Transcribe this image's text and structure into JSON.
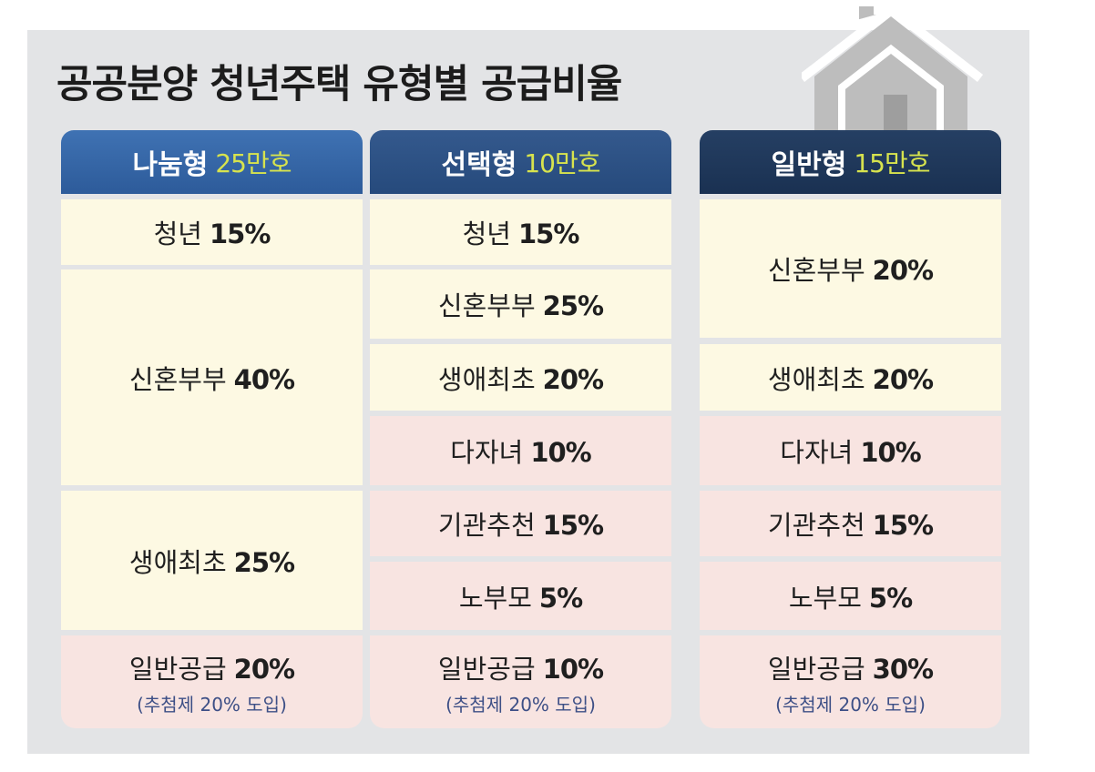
{
  "title": "공공분양 청년주택 유형별 공급비율",
  "columns": [
    {
      "name": "나눔형",
      "count": "25만호",
      "rows": [
        {
          "label": "청년",
          "pct": "15%"
        },
        {
          "label": "신혼부부",
          "pct": "40%"
        },
        {
          "label": "생애최초",
          "pct": "25%"
        },
        {
          "label": "일반공급",
          "pct": "20%",
          "note": "(추첨제 20% 도입)"
        }
      ]
    },
    {
      "name": "선택형",
      "count": "10만호",
      "rows": [
        {
          "label": "청년",
          "pct": "15%"
        },
        {
          "label": "신혼부부",
          "pct": "25%"
        },
        {
          "label": "생애최초",
          "pct": "20%"
        },
        {
          "label": "다자녀",
          "pct": "10%"
        },
        {
          "label": "기관추천",
          "pct": "15%"
        },
        {
          "label": "노부모",
          "pct": "5%"
        },
        {
          "label": "일반공급",
          "pct": "10%",
          "note": "(추첨제 20% 도입)"
        }
      ]
    },
    {
      "name": "일반형",
      "count": "15만호",
      "rows": [
        {
          "label": "신혼부부",
          "pct": "20%"
        },
        {
          "label": "생애최초",
          "pct": "20%"
        },
        {
          "label": "다자녀",
          "pct": "10%"
        },
        {
          "label": "기관추천",
          "pct": "15%"
        },
        {
          "label": "노부모",
          "pct": "5%"
        },
        {
          "label": "일반공급",
          "pct": "30%",
          "note": "(추첨제 20% 도입)"
        }
      ]
    }
  ],
  "colors": {
    "header_1": "#2d5b9a",
    "header_2": "#264a7c",
    "header_3": "#1a3152",
    "count_text": "#d7e34e",
    "row_yellow": "#fdf9e3",
    "row_pink": "#f8e4e1",
    "note_text": "#3d4f86",
    "background": "#e3e4e6"
  },
  "icons": [
    "house-icon"
  ]
}
